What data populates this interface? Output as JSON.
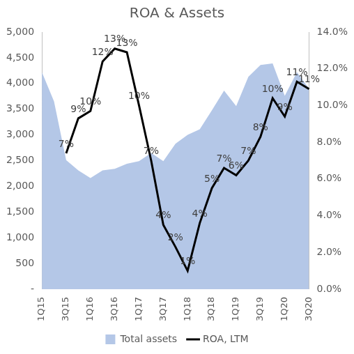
{
  "chart_data": {
    "type": "combo",
    "title": "ROA & Assets",
    "categories": [
      "1Q15",
      null,
      "3Q15",
      null,
      "1Q16",
      null,
      "3Q16",
      null,
      "1Q17",
      null,
      "3Q17",
      null,
      "1Q18",
      null,
      "3Q18",
      null,
      "1Q19",
      null,
      "3Q19",
      null,
      "1Q20",
      null,
      "3Q20"
    ],
    "series": [
      {
        "name": "Total assets",
        "type": "area",
        "color": "#b4c7e7",
        "values": [
          4220,
          3650,
          2510,
          2310,
          2160,
          2310,
          2340,
          2440,
          2490,
          2650,
          2490,
          2830,
          3000,
          3110,
          3480,
          3860,
          3560,
          4130,
          4360,
          4390,
          3760,
          4220,
          3900
        ]
      },
      {
        "name": "ROA, LTM",
        "type": "line",
        "axis": "y2",
        "color": "#000000",
        "data_labels": true,
        "values": [
          null,
          null,
          7.4,
          9.3,
          9.7,
          12.4,
          13.1,
          12.9,
          10.0,
          7.0,
          3.5,
          2.3,
          1.0,
          3.6,
          5.5,
          6.6,
          6.2,
          7.0,
          8.3,
          10.4,
          9.4,
          11.3,
          10.9
        ],
        "value_labels": [
          null,
          null,
          "7%",
          "9%",
          "10%",
          "12%",
          "13%",
          "13%",
          "10%",
          "7%",
          "4%",
          "2%",
          "1%",
          "4%",
          "5%",
          "7%",
          "6%",
          "7%",
          "8%",
          "10%",
          "9%",
          "11%",
          "11%"
        ]
      }
    ],
    "ylim": [
      0,
      5000
    ],
    "yticks": [
      {
        "value": 0,
        "label": "-"
      },
      {
        "value": 500,
        "label": "500"
      },
      {
        "value": 1000,
        "label": "1,000"
      },
      {
        "value": 1500,
        "label": "1,500"
      },
      {
        "value": 2000,
        "label": "2,000"
      },
      {
        "value": 2500,
        "label": "2,500"
      },
      {
        "value": 3000,
        "label": "3,000"
      },
      {
        "value": 3500,
        "label": "3,500"
      },
      {
        "value": 4000,
        "label": "4,000"
      },
      {
        "value": 4500,
        "label": "4,500"
      },
      {
        "value": 5000,
        "label": "5,000"
      }
    ],
    "y2lim": [
      0,
      14
    ],
    "y2ticks": [
      {
        "value": 0,
        "label": "0.0%"
      },
      {
        "value": 2,
        "label": "2.0%"
      },
      {
        "value": 4,
        "label": "4.0%"
      },
      {
        "value": 6,
        "label": "6.0%"
      },
      {
        "value": 8,
        "label": "8.0%"
      },
      {
        "value": 10,
        "label": "10.0%"
      },
      {
        "value": 12,
        "label": "12.0%"
      },
      {
        "value": 14,
        "label": "14.0%"
      }
    ],
    "grid": false,
    "legend": "bottom"
  }
}
